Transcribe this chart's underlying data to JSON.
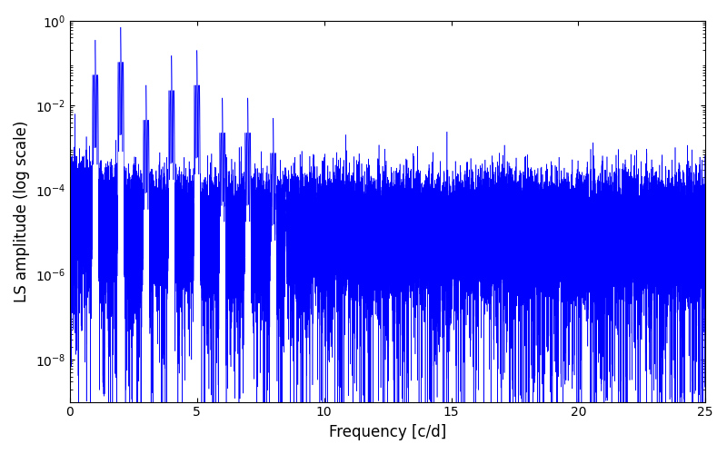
{
  "title": "",
  "xlabel": "Frequency [c/d]",
  "ylabel": "LS amplitude (log scale)",
  "xlim": [
    0,
    25
  ],
  "ylim": [
    1e-09,
    1.0
  ],
  "line_color": "#0000FF",
  "line_width": 0.4,
  "background_color": "#ffffff",
  "figsize": [
    8.0,
    5.0
  ],
  "dpi": 100,
  "freq_max": 25.0,
  "n_points": 50000,
  "seed": 12345,
  "peak_freqs": [
    1.0,
    2.0,
    3.0,
    4.0,
    5.0,
    6.0,
    7.0,
    8.0
  ],
  "peak_heights": [
    0.35,
    0.7,
    0.03,
    0.15,
    0.2,
    0.015,
    0.015,
    0.005
  ],
  "peak_widths": [
    0.008,
    0.008,
    0.008,
    0.008,
    0.008,
    0.008,
    0.008,
    0.008
  ],
  "yticks": [
    1e-08,
    1e-06,
    0.0001,
    0.01,
    1.0
  ],
  "xticks": [
    0,
    5,
    10,
    15,
    20,
    25
  ]
}
